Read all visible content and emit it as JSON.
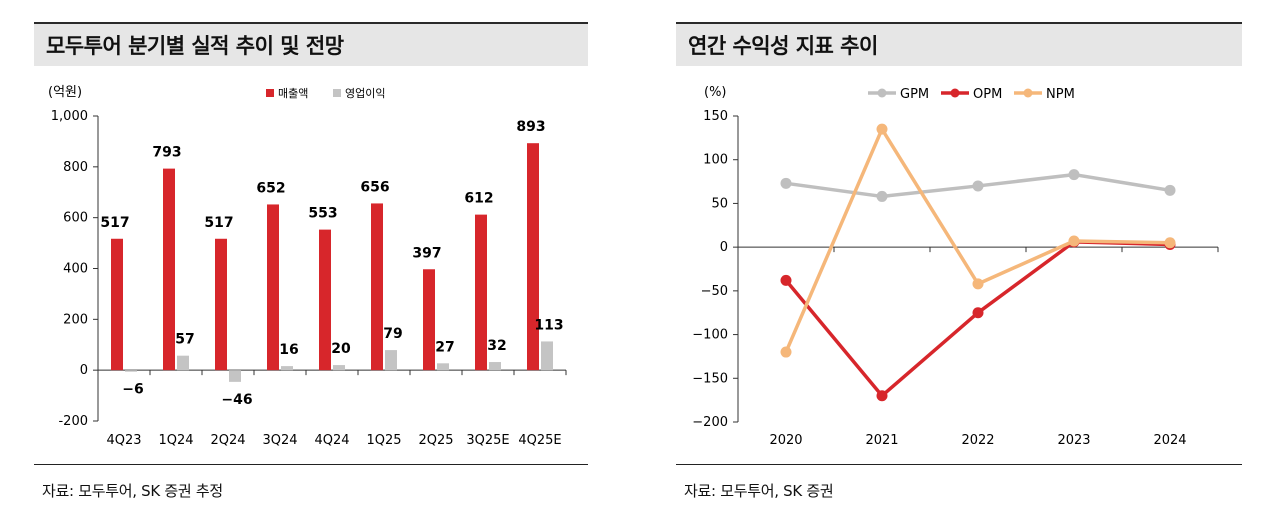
{
  "left_panel": {
    "title": "모두투어 분기별 실적 추이 및 전망",
    "source": "자료: 모두투어, SK 증권 추정"
  },
  "right_panel": {
    "title": "연간 수익성 지표 추이",
    "source": "자료: 모두투어, SK 증권"
  },
  "chart_data": [
    {
      "type": "bar",
      "unit_label": "(억원)",
      "categories": [
        "4Q23",
        "1Q24",
        "2Q24",
        "3Q24",
        "4Q24",
        "1Q25",
        "2Q25",
        "3Q25E",
        "4Q25E"
      ],
      "series": [
        {
          "name": "매출액",
          "color": "#d7262b",
          "values": [
            517,
            793,
            517,
            652,
            553,
            656,
            397,
            612,
            893
          ]
        },
        {
          "name": "영업이익",
          "color": "#c4c4c4",
          "values": [
            -6,
            57,
            -46,
            16,
            20,
            79,
            27,
            32,
            113
          ]
        }
      ],
      "ylim": [
        -200,
        1000
      ],
      "yticks": [
        -200,
        0,
        200,
        400,
        600,
        800,
        1000
      ],
      "ytick_labels": [
        "-200",
        "0",
        "200",
        "400",
        "600",
        "800",
        "1,000"
      ],
      "legend_position": "top-center"
    },
    {
      "type": "line",
      "unit_label": "(%)",
      "x": [
        "2020",
        "2021",
        "2022",
        "2023",
        "2024"
      ],
      "series": [
        {
          "name": "GPM",
          "color": "#bfbfbf",
          "values": [
            73,
            58,
            70,
            83,
            65
          ]
        },
        {
          "name": "OPM",
          "color": "#d7262b",
          "values": [
            -38,
            -170,
            -75,
            6,
            3
          ]
        },
        {
          "name": "NPM",
          "color": "#f5b77a",
          "values": [
            -120,
            135,
            -42,
            7,
            5
          ]
        }
      ],
      "ylim": [
        -200,
        150
      ],
      "yticks": [
        -200,
        -150,
        -100,
        -50,
        0,
        50,
        100,
        150
      ],
      "legend_position": "top-center"
    }
  ]
}
